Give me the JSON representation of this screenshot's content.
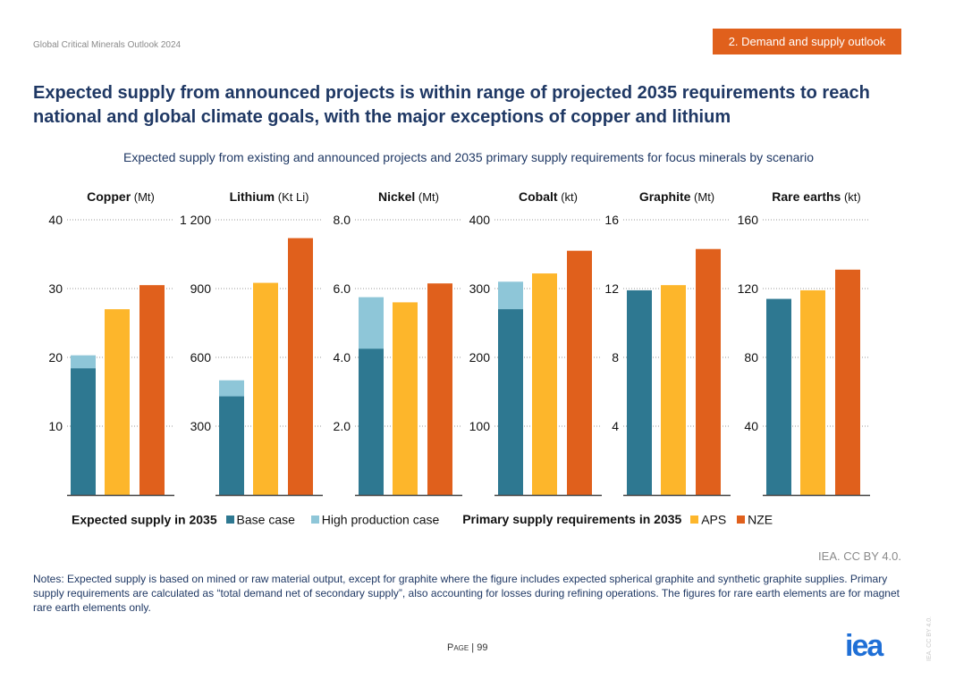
{
  "header": {
    "doc_title": "Global Critical Minerals Outlook 2024",
    "section": "2. Demand and supply outlook"
  },
  "headline": "Expected supply from announced projects is within range of projected 2035 requirements to reach national and global climate goals, with the major exceptions of copper and lithium",
  "colors": {
    "base_case": "#2e7891",
    "high_production_case": "#8ec6d8",
    "aps": "#fdb62b",
    "nze": "#e0601c",
    "title_blue": "#1f3864",
    "section_orange": "#e0601c"
  },
  "chart_data": {
    "type": "bar",
    "title": "Expected supply from existing and announced projects and 2035 primary supply requirements for focus minerals by scenario",
    "grid": "dotted horizontal",
    "panels": [
      {
        "name": "Copper",
        "unit": "(Mt)",
        "ylim": [
          0,
          40
        ],
        "ticks": [
          "10",
          "20",
          "30",
          "40"
        ],
        "tick_values": [
          10,
          20,
          30,
          40
        ],
        "base_case": 18.4,
        "high_production_case": 20.3,
        "aps": 27.0,
        "nze": 30.5
      },
      {
        "name": "Lithium",
        "unit": "(Kt Li)",
        "ylim": [
          0,
          1200
        ],
        "ticks": [
          "300",
          "600",
          "900",
          "1 200"
        ],
        "tick_values": [
          300,
          600,
          900,
          1200
        ],
        "base_case": 430,
        "high_production_case": 500,
        "aps": 925,
        "nze": 1120
      },
      {
        "name": "Nickel",
        "unit": "(Mt)",
        "ylim": [
          0,
          8
        ],
        "ticks": [
          "2.0",
          "4.0",
          "6.0",
          "8.0"
        ],
        "tick_values": [
          2,
          4,
          6,
          8
        ],
        "base_case": 4.25,
        "high_production_case": 5.75,
        "aps": 5.6,
        "nze": 6.15
      },
      {
        "name": "Cobalt",
        "unit": "(kt)",
        "ylim": [
          0,
          400
        ],
        "ticks": [
          "100",
          "200",
          "300",
          "400"
        ],
        "tick_values": [
          100,
          200,
          300,
          400
        ],
        "base_case": 270,
        "high_production_case": 310,
        "aps": 322,
        "nze": 355
      },
      {
        "name": "Graphite",
        "unit": "(Mt)",
        "ylim": [
          0,
          16
        ],
        "ticks": [
          "4",
          "8",
          "12",
          "16"
        ],
        "tick_values": [
          4,
          8,
          12,
          16
        ],
        "base_case": 11.9,
        "high_production_case": 11.9,
        "aps": 12.2,
        "nze": 14.3
      },
      {
        "name": "Rare earths",
        "unit": "(kt)",
        "ylim": [
          0,
          160
        ],
        "ticks": [
          "40",
          "80",
          "120",
          "160"
        ],
        "tick_values": [
          40,
          80,
          120,
          160
        ],
        "base_case": 114,
        "high_production_case": 114,
        "aps": 119,
        "nze": 131
      }
    ]
  },
  "legend": {
    "supply_title": "Expected supply in 2035",
    "base_case": "Base case",
    "high_production_case": "High production case",
    "req_title": "Primary supply requirements in 2035",
    "aps": "APS",
    "nze": "NZE"
  },
  "credit": "IEA. CC BY 4.0.",
  "notes": "Notes: Expected supply is based on mined or raw material output, except for graphite where the figure includes expected spherical graphite and synthetic graphite supplies. Primary supply requirements are calculated as “total demand net of secondary supply”, also accounting for losses during refining operations. The figures for rare earth elements are for magnet rare earth elements only.",
  "footer": {
    "page_label": "Page",
    "separator": " | ",
    "page_number": "99",
    "logo": "iea",
    "side_text": "IEA. CC BY 4.0."
  }
}
